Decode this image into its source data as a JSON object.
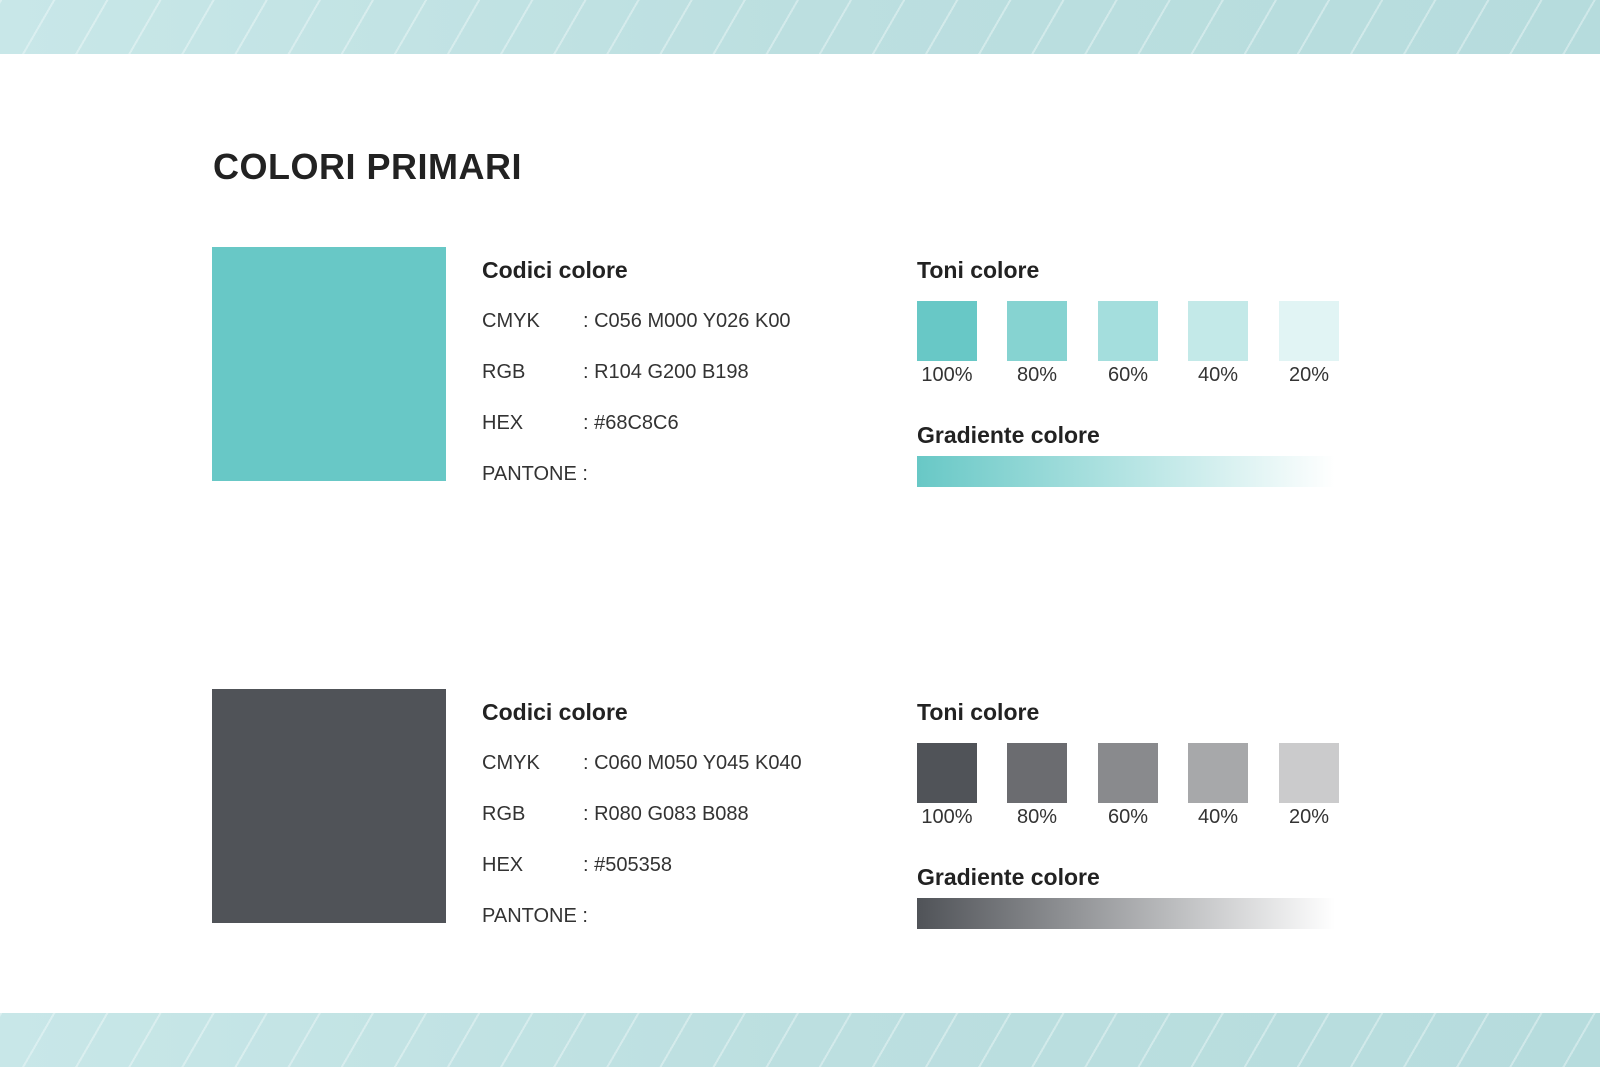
{
  "title": "COLORI PRIMARI",
  "palettes": [
    {
      "color": "#68C8C6",
      "codes_heading": "Codici colore",
      "codes": [
        {
          "label": "CMYK",
          "value": ": C056 M000 Y026 K00"
        },
        {
          "label": "RGB",
          "value": ": R104 G200 B198"
        },
        {
          "label": "HEX",
          "value": ": #68C8C6"
        },
        {
          "label": "PANTONE :",
          "value": ""
        }
      ],
      "tones_heading": "Toni colore",
      "tones": [
        {
          "label": "100%",
          "color": "#68C8C6"
        },
        {
          "label": "80%",
          "color": "#86D3D1"
        },
        {
          "label": "60%",
          "color": "#A4DEDD"
        },
        {
          "label": "40%",
          "color": "#C3E9E8"
        },
        {
          "label": "20%",
          "color": "#E1F4F4"
        }
      ],
      "gradient_heading": "Gradiente colore"
    },
    {
      "color": "#505358",
      "codes_heading": "Codici colore",
      "codes": [
        {
          "label": "CMYK",
          "value": ": C060 M050 Y045 K040"
        },
        {
          "label": "RGB",
          "value": ": R080 G083 B088"
        },
        {
          "label": "HEX",
          "value": ": #505358"
        },
        {
          "label": "PANTONE :",
          "value": ""
        }
      ],
      "tones_heading": "Toni colore",
      "tones": [
        {
          "label": "100%",
          "color": "#505358"
        },
        {
          "label": "80%",
          "color": "#6B6C70"
        },
        {
          "label": "60%",
          "color": "#898A8D"
        },
        {
          "label": "40%",
          "color": "#A7A8AA"
        },
        {
          "label": "20%",
          "color": "#CBCBCC"
        }
      ],
      "gradient_heading": "Gradiente colore"
    }
  ]
}
